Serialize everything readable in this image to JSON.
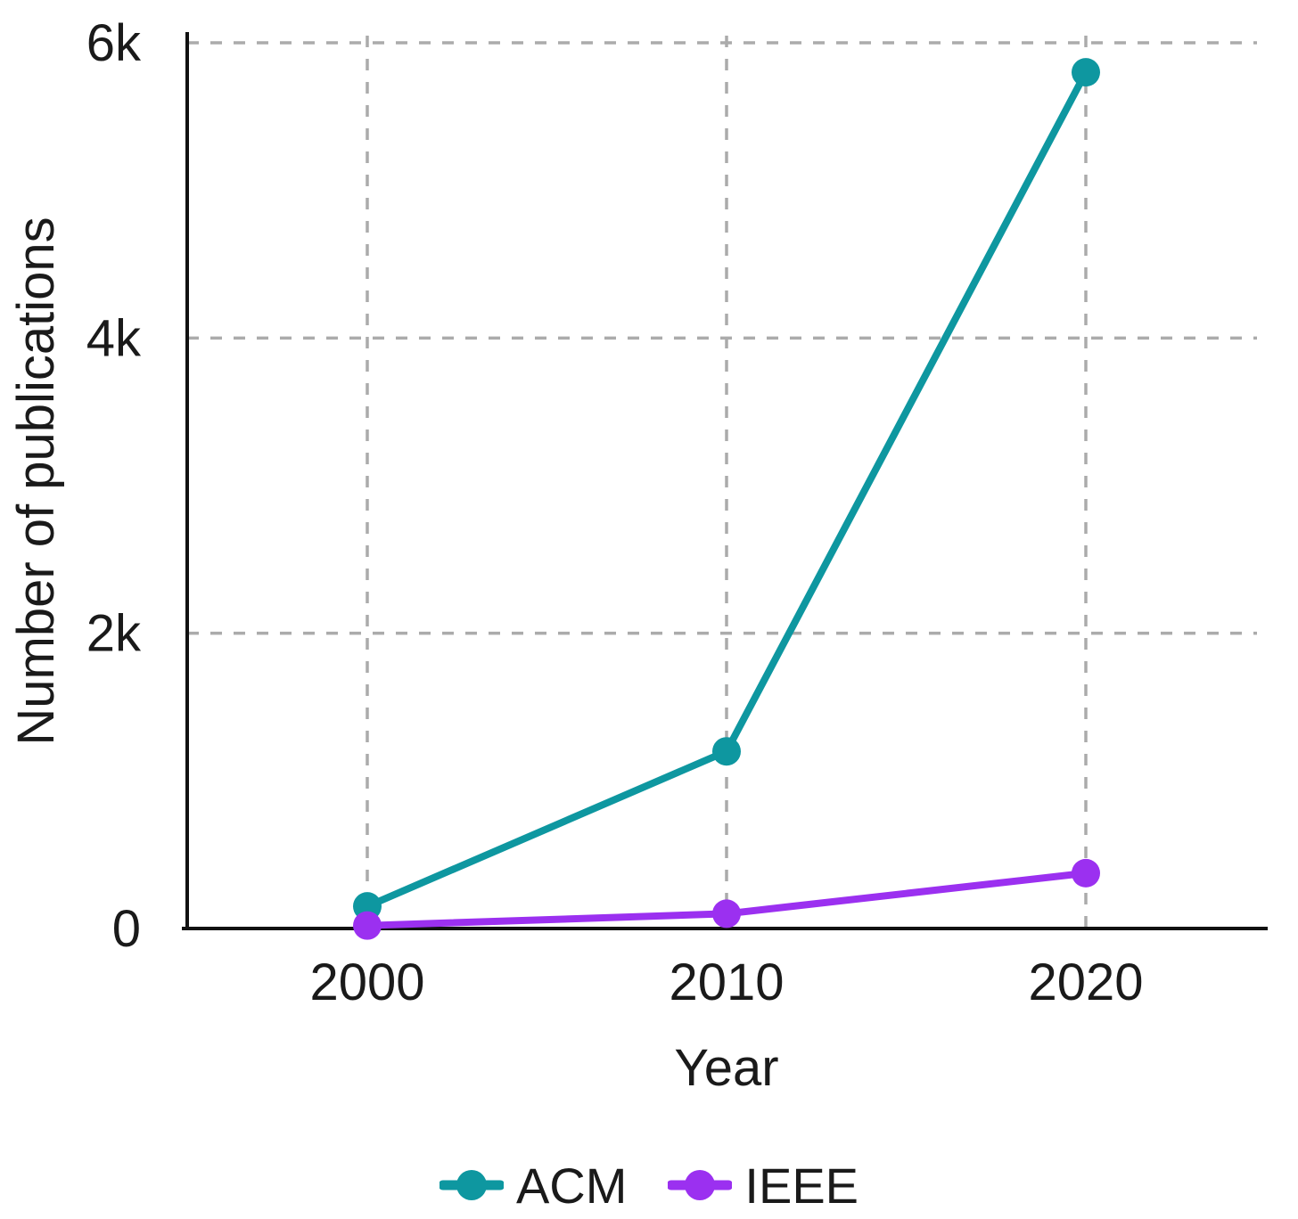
{
  "figure": {
    "background": "#ffffff"
  },
  "chart_data": {
    "type": "line",
    "title": "",
    "xlabel": "Year",
    "ylabel": "Number of publications",
    "categories": [
      "2000",
      "2010",
      "2020"
    ],
    "series": [
      {
        "name": "ACM",
        "color": "#0E97A0",
        "values": [
          150,
          1200,
          5800
        ]
      },
      {
        "name": "IEEE",
        "color": "#9B30F0",
        "values": [
          20,
          100,
          375
        ]
      }
    ],
    "ylim": [
      0,
      6000
    ],
    "yticks": [
      {
        "value": 0,
        "label": "0"
      },
      {
        "value": 2000,
        "label": "2k"
      },
      {
        "value": 4000,
        "label": "4k"
      },
      {
        "value": 6000,
        "label": "6k"
      }
    ],
    "grid": true,
    "grid_style": "dashed",
    "grid_color": "#ABABAB",
    "axis_color": "#111111",
    "text_color": "#1A1A1A",
    "legend_position": "bottom",
    "marker": "circle",
    "marker_size": 16,
    "line_width": 8
  }
}
